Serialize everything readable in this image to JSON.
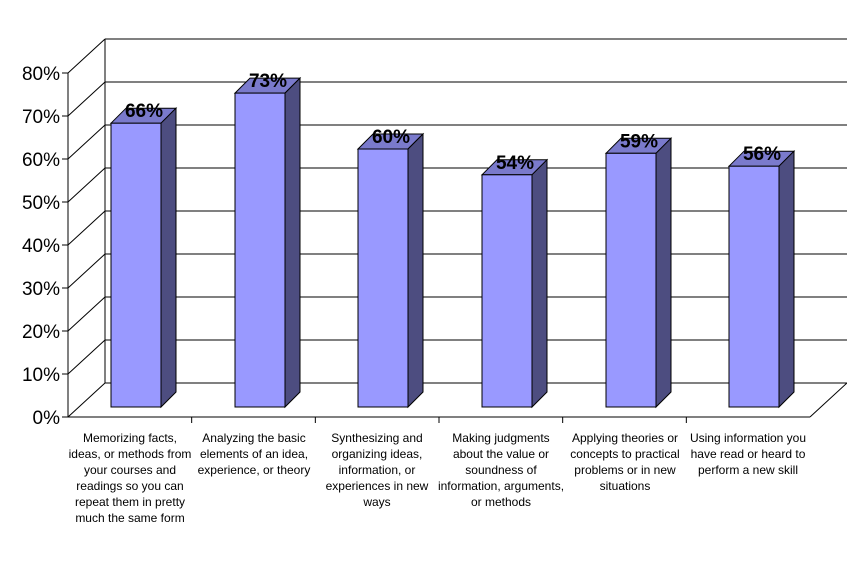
{
  "chart_data": {
    "type": "bar",
    "categories": [
      "Memorizing facts, ideas, or methods from your courses and readings so you can repeat them in pretty much the same form",
      "Analyzing the basic elements of an idea, experience, or theory",
      "Synthesizing and organizing ideas, information, or experiences in new ways",
      "Making judgments about the value or soundness of information, arguments, or methods",
      "Applying theories or concepts to practical problems or in new situations",
      "Using information you have read or heard to perform a new skill"
    ],
    "values": [
      66,
      73,
      60,
      54,
      59,
      56
    ],
    "data_labels": [
      "66%",
      "73%",
      "60%",
      "54%",
      "59%",
      "56%"
    ],
    "ytick_labels": [
      "0%",
      "10%",
      "20%",
      "30%",
      "40%",
      "50%",
      "60%",
      "70%",
      "80%"
    ],
    "ylim": [
      0,
      80
    ],
    "title": "",
    "xlabel": "",
    "ylabel": "",
    "grid": true,
    "style": "3d-column",
    "colors": {
      "bar_front": "#9999FF",
      "bar_side": "#4D4D80",
      "bar_top": "#7A7ACC",
      "gridline": "#000000"
    }
  }
}
